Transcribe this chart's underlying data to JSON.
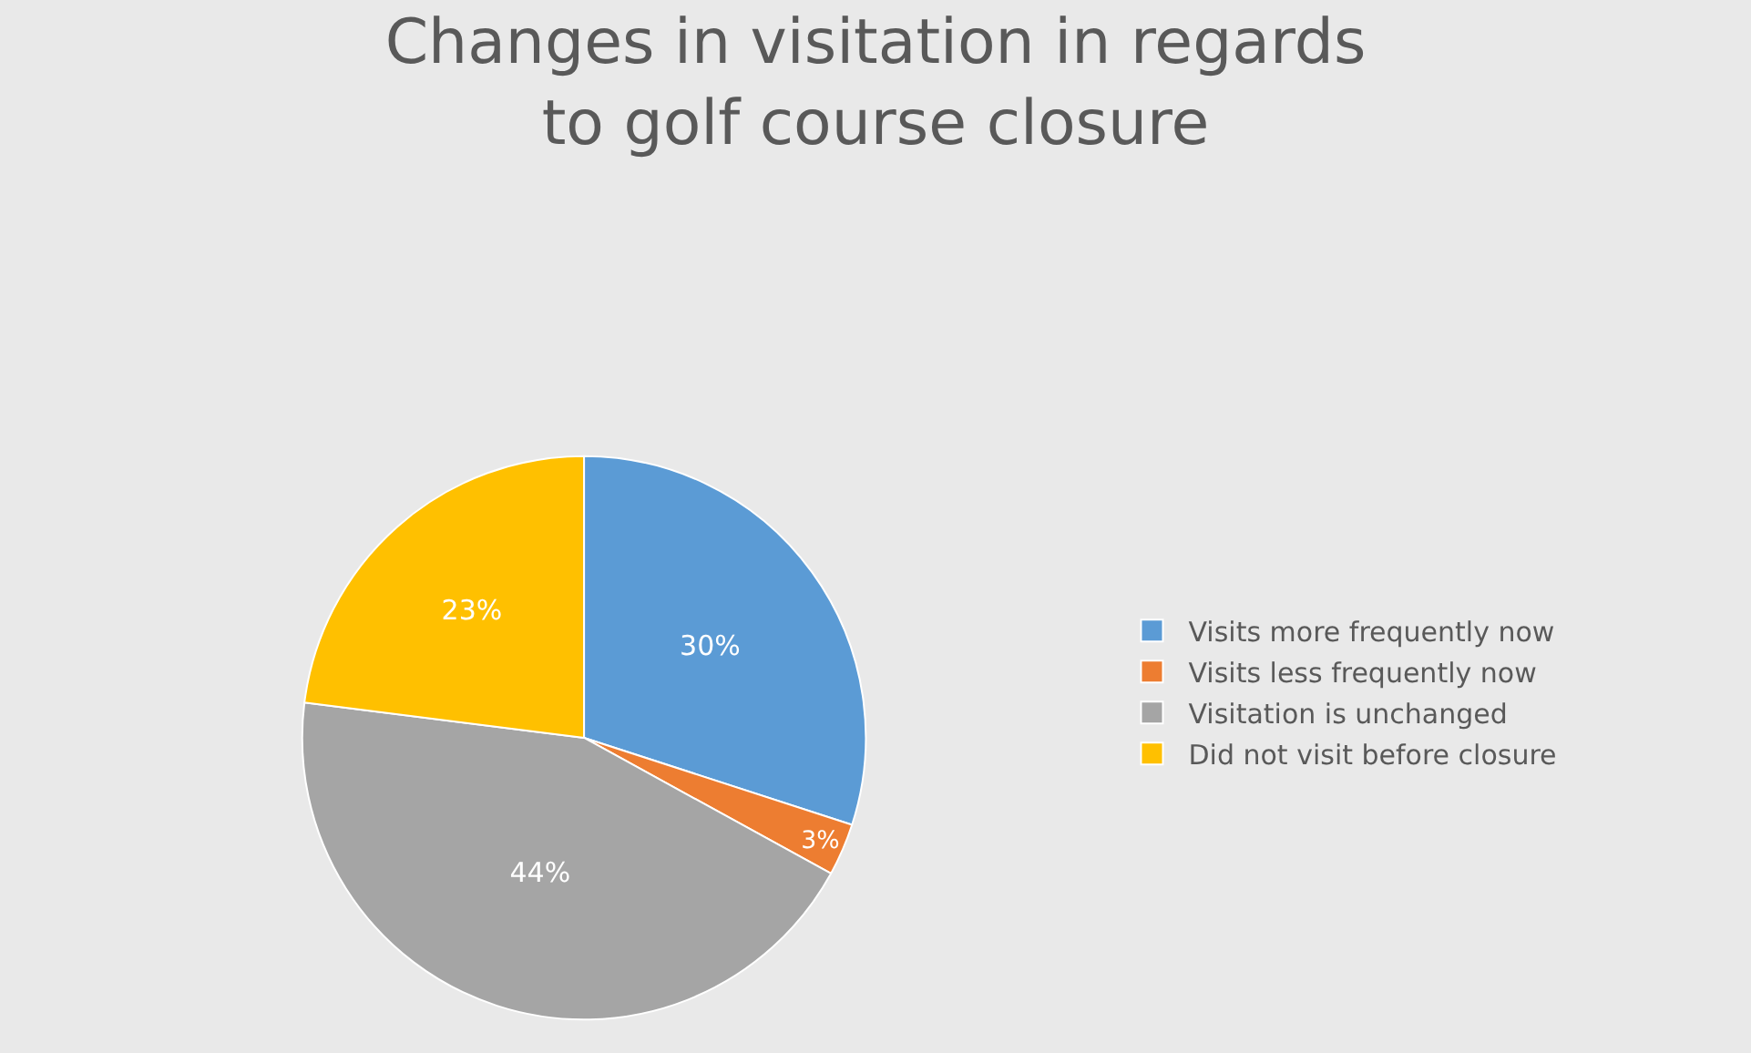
{
  "chart_data": {
    "type": "pie",
    "title": "Changes in visitation in regards to golf course closure",
    "categories": [
      "Visits more frequently now",
      "Visits less frequently now",
      "Visitation is unchanged",
      "Did not visit before closure"
    ],
    "values": [
      30,
      3,
      44,
      23
    ],
    "colors": [
      "#5b9bd5",
      "#ed7d31",
      "#a5a5a5",
      "#ffc000"
    ],
    "value_labels": [
      "30%",
      "3%",
      "44%",
      "23%"
    ],
    "legend": "right"
  }
}
